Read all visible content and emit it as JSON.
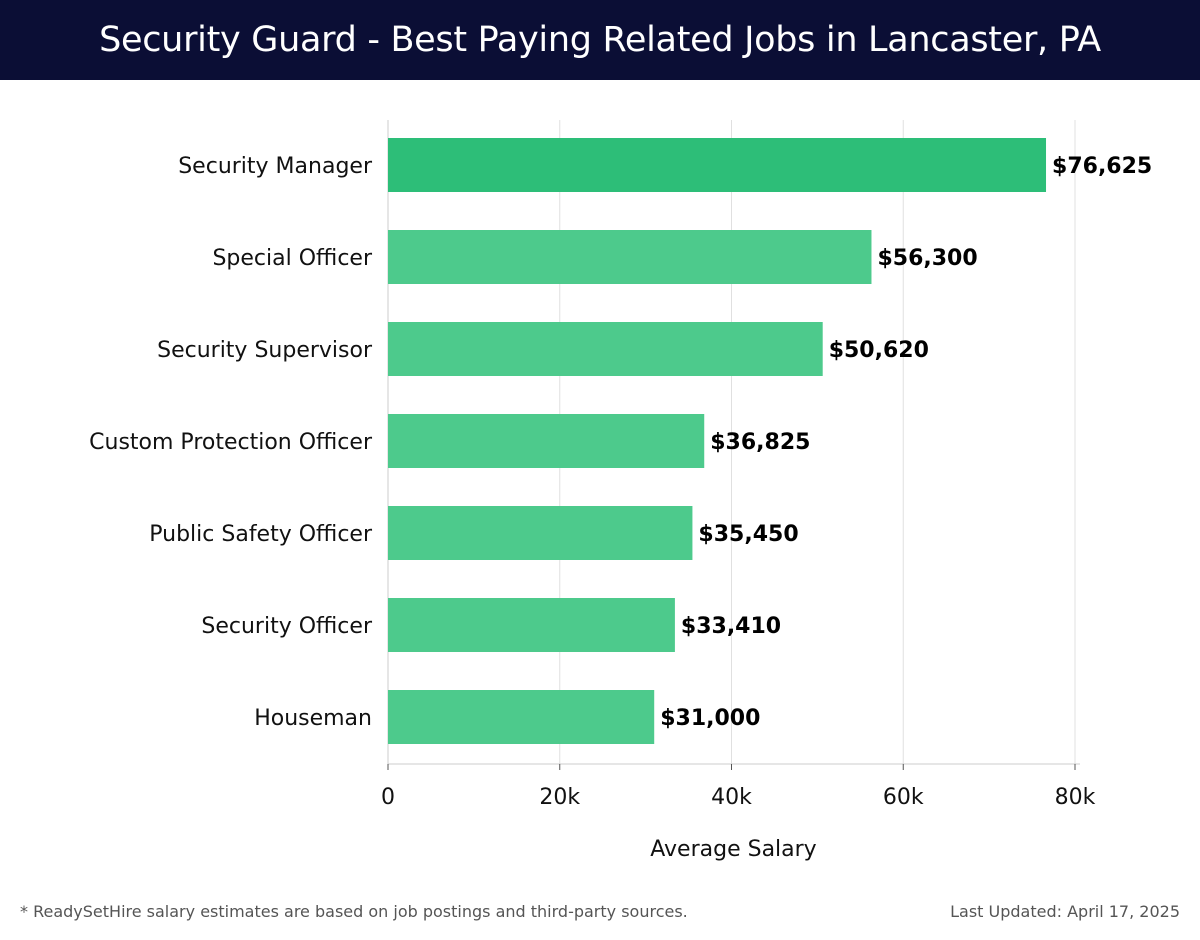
{
  "header": {
    "title": "Security Guard - Best Paying Related Jobs in Lancaster, PA"
  },
  "chart_data": {
    "type": "bar",
    "orientation": "horizontal",
    "title": "Security Guard - Best Paying Related Jobs in Lancaster, PA",
    "xlabel": "Average Salary",
    "ylabel": "",
    "categories": [
      "Security Manager",
      "Special Officer",
      "Security Supervisor",
      "Custom Protection Officer",
      "Public Safety Officer",
      "Security Officer",
      "Houseman"
    ],
    "values": [
      76625,
      56300,
      50620,
      36825,
      35450,
      33410,
      31000
    ],
    "value_labels": [
      "$76,625",
      "$56,300",
      "$50,620",
      "$36,825",
      "$35,450",
      "$33,410",
      "$31,000"
    ],
    "xlim": [
      0,
      80000
    ],
    "x_ticks": [
      0,
      20000,
      40000,
      60000,
      80000
    ],
    "x_tick_labels": [
      "0",
      "20k",
      "40k",
      "60k",
      "80k"
    ],
    "grid": true,
    "colors": {
      "top_bar": "#2dbe78",
      "bar": "#4dca8c",
      "grid": "#e0e0e0",
      "axis": "#cccccc"
    }
  },
  "footer": {
    "note": "* ReadySetHire salary estimates are based on job postings and third-party sources.",
    "updated": "Last Updated: April 17, 2025"
  }
}
